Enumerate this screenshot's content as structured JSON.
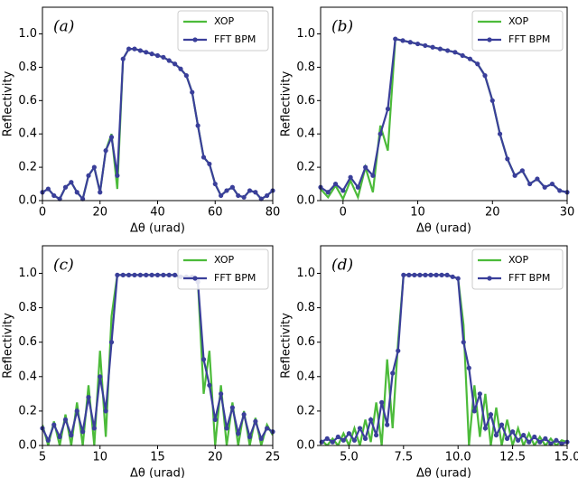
{
  "chart_data": [
    {
      "type": "line",
      "annotation": "(a)",
      "x_label": "Δθ (urad)",
      "y_label": "Reflectivity",
      "legend": "upper right",
      "x": [
        0,
        2,
        4,
        6,
        8,
        10,
        12,
        14,
        16,
        18,
        20,
        22,
        24,
        26,
        28,
        30,
        32,
        34,
        36,
        38,
        40,
        42,
        44,
        46,
        48,
        50,
        52,
        54,
        56,
        58,
        60,
        62,
        64,
        66,
        68,
        70,
        72,
        74,
        76,
        78,
        80
      ],
      "series": [
        {
          "name": "XOP",
          "color": "#4cbb3a",
          "marker": false,
          "values": [
            0.05,
            0.07,
            0.03,
            0.01,
            0.08,
            0.11,
            0.05,
            0.01,
            0.15,
            0.2,
            0.05,
            0.3,
            0.4,
            0.07,
            0.85,
            0.91,
            0.91,
            0.9,
            0.89,
            0.88,
            0.87,
            0.86,
            0.84,
            0.82,
            0.79,
            0.75,
            0.65,
            0.45,
            0.26,
            0.22,
            0.1,
            0.03,
            0.06,
            0.08,
            0.03,
            0.02,
            0.06,
            0.05,
            0.01,
            0.03,
            0.06
          ]
        },
        {
          "name": "FFT BPM",
          "color": "#3a3f9a",
          "marker": true,
          "values": [
            0.05,
            0.07,
            0.03,
            0.01,
            0.08,
            0.11,
            0.05,
            0.01,
            0.15,
            0.2,
            0.05,
            0.3,
            0.38,
            0.15,
            0.85,
            0.91,
            0.91,
            0.9,
            0.89,
            0.88,
            0.87,
            0.86,
            0.84,
            0.82,
            0.79,
            0.75,
            0.65,
            0.45,
            0.26,
            0.22,
            0.1,
            0.03,
            0.06,
            0.08,
            0.03,
            0.02,
            0.06,
            0.05,
            0.01,
            0.03,
            0.06
          ]
        }
      ],
      "xlim": [
        0,
        80
      ],
      "ylim": [
        0,
        1.16
      ],
      "xticks": [
        0,
        20,
        40,
        60,
        80
      ],
      "yticks": [
        {
          "value": 0,
          "label": "0.0"
        },
        {
          "value": 0.2,
          "label": "0.2"
        },
        {
          "value": 0.4,
          "label": "0.4"
        },
        {
          "value": 0.6,
          "label": "0.6"
        },
        {
          "value": 0.8,
          "label": "0.8"
        },
        {
          "value": 1,
          "label": "1.0"
        }
      ]
    },
    {
      "type": "line",
      "annotation": "(b)",
      "x_label": "Δθ (urad)",
      "y_label": "Reflectivity",
      "legend": "upper right",
      "x": [
        -3,
        -2,
        -1,
        0,
        1,
        2,
        3,
        4,
        5,
        6,
        7,
        8,
        9,
        10,
        11,
        12,
        13,
        14,
        15,
        16,
        17,
        18,
        19,
        20,
        21,
        22,
        23,
        24,
        25,
        26,
        27,
        28,
        29,
        30
      ],
      "series": [
        {
          "name": "XOP",
          "color": "#4cbb3a",
          "marker": false,
          "values": [
            0.07,
            0.02,
            0.09,
            0.01,
            0.12,
            0.02,
            0.2,
            0.05,
            0.45,
            0.3,
            0.97,
            0.96,
            0.95,
            0.94,
            0.93,
            0.92,
            0.91,
            0.9,
            0.89,
            0.87,
            0.85,
            0.82,
            0.75,
            0.6,
            0.4,
            0.25,
            0.15,
            0.18,
            0.1,
            0.13,
            0.08,
            0.1,
            0.06,
            0.05
          ]
        },
        {
          "name": "FFT BPM",
          "color": "#3a3f9a",
          "marker": true,
          "values": [
            0.08,
            0.05,
            0.1,
            0.06,
            0.14,
            0.08,
            0.2,
            0.15,
            0.4,
            0.55,
            0.97,
            0.96,
            0.95,
            0.94,
            0.93,
            0.92,
            0.91,
            0.9,
            0.89,
            0.87,
            0.85,
            0.82,
            0.75,
            0.6,
            0.4,
            0.25,
            0.15,
            0.18,
            0.1,
            0.13,
            0.08,
            0.1,
            0.06,
            0.05
          ]
        }
      ],
      "xlim": [
        -3,
        30
      ],
      "ylim": [
        0,
        1.16
      ],
      "xticks": [
        0,
        10,
        20,
        30
      ],
      "yticks": [
        {
          "value": 0,
          "label": "0.0"
        },
        {
          "value": 0.2,
          "label": "0.2"
        },
        {
          "value": 0.4,
          "label": "0.4"
        },
        {
          "value": 0.6,
          "label": "0.6"
        },
        {
          "value": 0.8,
          "label": "0.8"
        },
        {
          "value": 1,
          "label": "1.0"
        }
      ]
    },
    {
      "type": "line",
      "annotation": "(c)",
      "x_label": "Δθ (urad)",
      "y_label": "Reflectivity",
      "legend": "upper right",
      "x": [
        5,
        5.5,
        6,
        6.5,
        7,
        7.5,
        8,
        8.5,
        9,
        9.5,
        10,
        10.5,
        11,
        11.5,
        12,
        12.5,
        13,
        13.5,
        14,
        14.5,
        15,
        15.5,
        16,
        16.5,
        17,
        17.5,
        18,
        18.5,
        19,
        19.5,
        20,
        20.5,
        21,
        21.5,
        22,
        22.5,
        23,
        23.5,
        24,
        24.5,
        25
      ],
      "series": [
        {
          "name": "XOP",
          "color": "#4cbb3a",
          "marker": false,
          "values": [
            0.12,
            0,
            0.14,
            0,
            0.18,
            0,
            0.25,
            0,
            0.35,
            0,
            0.55,
            0.05,
            0.75,
            0.99,
            0.99,
            0.99,
            0.99,
            0.99,
            0.99,
            0.99,
            0.99,
            0.99,
            0.99,
            0.99,
            0.98,
            0.98,
            0.98,
            0.95,
            0.3,
            0.55,
            0,
            0.35,
            0,
            0.25,
            0,
            0.2,
            0,
            0.16,
            0,
            0.12,
            0.06
          ]
        },
        {
          "name": "FFT BPM",
          "color": "#3a3f9a",
          "marker": true,
          "values": [
            0.1,
            0.03,
            0.12,
            0.05,
            0.15,
            0.06,
            0.2,
            0.08,
            0.28,
            0.1,
            0.4,
            0.2,
            0.6,
            0.99,
            0.99,
            0.99,
            0.99,
            0.99,
            0.99,
            0.99,
            0.99,
            0.99,
            0.99,
            0.99,
            0.98,
            0.98,
            0.98,
            0.95,
            0.5,
            0.35,
            0.15,
            0.3,
            0.1,
            0.22,
            0.07,
            0.18,
            0.05,
            0.14,
            0.04,
            0.1,
            0.08
          ]
        }
      ],
      "xlim": [
        5,
        25
      ],
      "ylim": [
        0,
        1.16
      ],
      "xticks": [
        5,
        10,
        15,
        20,
        25
      ],
      "yticks": [
        {
          "value": 0,
          "label": "0.0"
        },
        {
          "value": 0.2,
          "label": "0.2"
        },
        {
          "value": 0.4,
          "label": "0.4"
        },
        {
          "value": 0.6,
          "label": "0.6"
        },
        {
          "value": 0.8,
          "label": "0.8"
        },
        {
          "value": 1,
          "label": "1.0"
        }
      ]
    },
    {
      "type": "line",
      "annotation": "(d)",
      "x_label": "Δθ (urad)",
      "y_label": "Reflectivity",
      "legend": "upper right",
      "x": [
        3.75,
        4,
        4.25,
        4.5,
        4.75,
        5,
        5.25,
        5.5,
        5.75,
        6,
        6.25,
        6.5,
        6.75,
        7,
        7.25,
        7.5,
        7.75,
        8,
        8.25,
        8.5,
        8.75,
        9,
        9.25,
        9.5,
        9.75,
        10,
        10.25,
        10.5,
        10.75,
        11,
        11.25,
        11.5,
        11.75,
        12,
        12.25,
        12.5,
        12.75,
        13,
        13.25,
        13.5,
        13.75,
        14,
        14.25,
        14.5,
        14.75,
        15
      ],
      "series": [
        {
          "name": "XOP",
          "color": "#4cbb3a",
          "marker": false,
          "values": [
            0.03,
            0,
            0.04,
            0,
            0.07,
            0,
            0.1,
            0,
            0.15,
            0.02,
            0.25,
            0,
            0.5,
            0.1,
            0.6,
            0.99,
            0.99,
            0.99,
            0.99,
            0.99,
            0.99,
            0.99,
            0.99,
            0.99,
            0.98,
            0.97,
            0.7,
            0,
            0.35,
            0.05,
            0.3,
            0,
            0.22,
            0,
            0.15,
            0,
            0.1,
            0,
            0.07,
            0,
            0.05,
            0,
            0.04,
            0,
            0.03,
            0.02
          ]
        },
        {
          "name": "FFT BPM",
          "color": "#3a3f9a",
          "marker": true,
          "values": [
            0.02,
            0.04,
            0.02,
            0.05,
            0.03,
            0.07,
            0.03,
            0.1,
            0.04,
            0.15,
            0.06,
            0.25,
            0.12,
            0.42,
            0.55,
            0.99,
            0.99,
            0.99,
            0.99,
            0.99,
            0.99,
            0.99,
            0.99,
            0.99,
            0.98,
            0.97,
            0.6,
            0.45,
            0.2,
            0.3,
            0.1,
            0.18,
            0.06,
            0.12,
            0.04,
            0.08,
            0.03,
            0.06,
            0.02,
            0.05,
            0.02,
            0.04,
            0.01,
            0.03,
            0.01,
            0.02
          ]
        }
      ],
      "xlim": [
        3.7,
        15
      ],
      "ylim": [
        0,
        1.16
      ],
      "xticks": [
        {
          "value": 5,
          "label": "5.0"
        },
        {
          "value": 7.5,
          "label": "7.5"
        },
        {
          "value": 10,
          "label": "10.0"
        },
        {
          "value": 12.5,
          "label": "12.5"
        },
        {
          "value": 15,
          "label": "15.0"
        }
      ],
      "yticks": [
        {
          "value": 0,
          "label": "0.0"
        },
        {
          "value": 0.2,
          "label": "0.2"
        },
        {
          "value": 0.4,
          "label": "0.4"
        },
        {
          "value": 0.6,
          "label": "0.6"
        },
        {
          "value": 0.8,
          "label": "0.8"
        },
        {
          "value": 1,
          "label": "1.0"
        }
      ]
    }
  ]
}
